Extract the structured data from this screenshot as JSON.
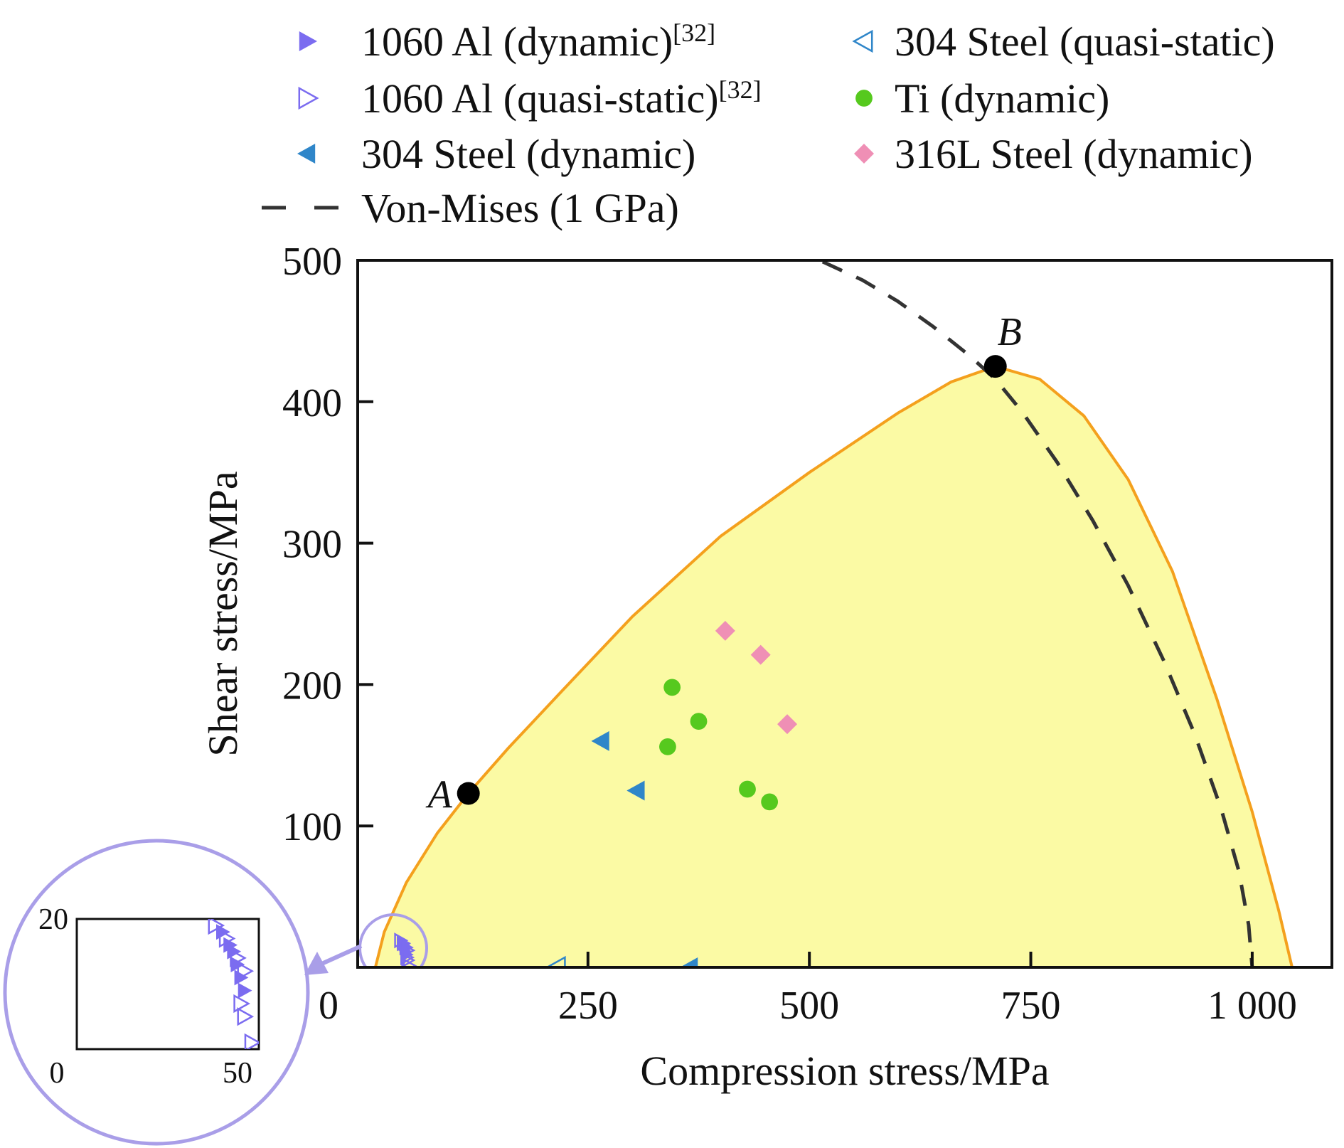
{
  "chart_data": {
    "type": "scatter",
    "xlabel": "Compression stress/MPa",
    "ylabel": "Shear stress/MPa",
    "xlim": [
      -10,
      1090
    ],
    "ylim": [
      0,
      500
    ],
    "x_ticks": [
      0,
      250,
      500,
      750,
      1000
    ],
    "x_tick_labels": [
      "0",
      "250",
      "500",
      "750",
      "1 000"
    ],
    "y_ticks": [
      100,
      200,
      300,
      400,
      500
    ],
    "y_tick_labels": [
      "100",
      "200",
      "300",
      "400",
      "500"
    ],
    "legend_position": "top",
    "legend": [
      {
        "label": "1060 Al (dynamic)",
        "sup": "[32]",
        "marker": "triangle-right-filled",
        "color": "#7b6cf0"
      },
      {
        "label": "304 Steel (quasi-static)",
        "sup": "",
        "marker": "triangle-left-open",
        "color": "#2f86c9"
      },
      {
        "label": "1060 Al (quasi-static)",
        "sup": "[32]",
        "marker": "triangle-right-open",
        "color": "#7b6cf0"
      },
      {
        "label": "Ti (dynamic)",
        "sup": "",
        "marker": "circle-filled",
        "color": "#56c91e"
      },
      {
        "label": "304 Steel (dynamic)",
        "sup": "",
        "marker": "triangle-left-filled",
        "color": "#2f86c9"
      },
      {
        "label": "316L Steel (dynamic)",
        "sup": "",
        "marker": "diamond-filled",
        "color": "#ef8fb5"
      },
      {
        "label": "Von-Mises (1 GPa)",
        "sup": "",
        "marker": "dashed-line",
        "color": "#333333"
      }
    ],
    "series": [
      {
        "name": "1060 Al (dynamic)",
        "marker": "triangle-right-filled",
        "color": "#7b6cf0",
        "points": [
          [
            40,
            18
          ],
          [
            42,
            16
          ],
          [
            43,
            15
          ],
          [
            44,
            13
          ],
          [
            45,
            11
          ],
          [
            46,
            9
          ]
        ]
      },
      {
        "name": "1060 Al (quasi-static)",
        "marker": "triangle-right-open",
        "color": "#7b6cf0",
        "points": [
          [
            38,
            19
          ],
          [
            41,
            17
          ],
          [
            44,
            14
          ],
          [
            46,
            12
          ],
          [
            45,
            7
          ],
          [
            46,
            5
          ],
          [
            48,
            1
          ]
        ]
      },
      {
        "name": "304 Steel (dynamic)",
        "marker": "triangle-left-filled",
        "color": "#2f86c9",
        "points": [
          [
            265,
            160
          ],
          [
            305,
            125
          ],
          [
            365,
            0
          ]
        ]
      },
      {
        "name": "304 Steel (quasi-static)",
        "marker": "triangle-left-open",
        "color": "#2f86c9",
        "points": [
          [
            215,
            0
          ]
        ]
      },
      {
        "name": "Ti (dynamic)",
        "marker": "circle-filled",
        "color": "#56c91e",
        "points": [
          [
            345,
            198
          ],
          [
            375,
            174
          ],
          [
            340,
            156
          ],
          [
            430,
            126
          ],
          [
            455,
            117
          ]
        ]
      },
      {
        "name": "316L Steel (dynamic)",
        "marker": "diamond-filled",
        "color": "#ef8fb5",
        "points": [
          [
            405,
            238
          ],
          [
            445,
            221
          ],
          [
            475,
            172
          ]
        ]
      }
    ],
    "envelope": {
      "fill": "#fbfaa4",
      "stroke": "#f4a01d",
      "points": [
        [
          10,
          0
        ],
        [
          20,
          25
        ],
        [
          45,
          60
        ],
        [
          80,
          95
        ],
        [
          115,
          123
        ],
        [
          160,
          155
        ],
        [
          220,
          195
        ],
        [
          300,
          248
        ],
        [
          400,
          305
        ],
        [
          500,
          350
        ],
        [
          600,
          392
        ],
        [
          660,
          414
        ],
        [
          710,
          425
        ],
        [
          760,
          416
        ],
        [
          810,
          390
        ],
        [
          860,
          345
        ],
        [
          910,
          280
        ],
        [
          960,
          190
        ],
        [
          1000,
          110
        ],
        [
          1030,
          40
        ],
        [
          1045,
          0
        ]
      ]
    },
    "von_mises": {
      "color": "#333333",
      "points": [
        [
          515,
          499
        ],
        [
          560,
          486
        ],
        [
          600,
          471
        ],
        [
          640,
          453
        ],
        [
          680,
          433
        ],
        [
          710,
          416
        ],
        [
          740,
          393
        ],
        [
          780,
          357
        ],
        [
          820,
          316
        ],
        [
          860,
          270
        ],
        [
          900,
          217
        ],
        [
          935,
          165
        ],
        [
          965,
          112
        ],
        [
          985,
          68
        ],
        [
          996,
          30
        ],
        [
          1000,
          0
        ]
      ]
    },
    "annotations": [
      {
        "label": "A",
        "x": 115,
        "y": 123
      },
      {
        "label": "B",
        "x": 710,
        "y": 425
      }
    ],
    "inset": {
      "xlim": [
        0,
        50
      ],
      "ylim": [
        0,
        20
      ],
      "x_tick_labels": [
        "0",
        "50"
      ],
      "y_tick_labels": [
        "20"
      ]
    }
  }
}
